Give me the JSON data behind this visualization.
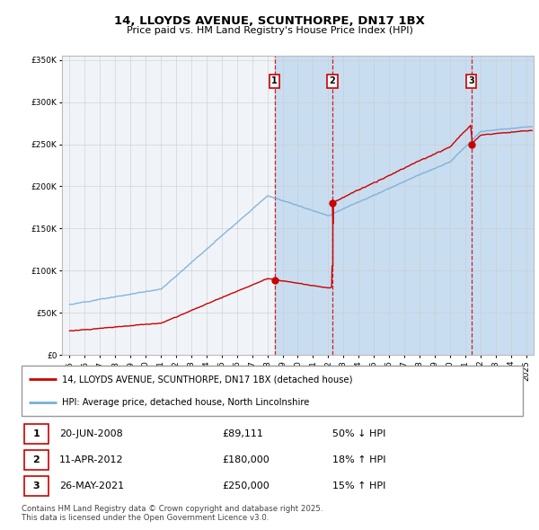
{
  "title": "14, LLOYDS AVENUE, SCUNTHORPE, DN17 1BX",
  "subtitle": "Price paid vs. HM Land Registry's House Price Index (HPI)",
  "legend_line1": "14, LLOYDS AVENUE, SCUNTHORPE, DN17 1BX (detached house)",
  "legend_line2": "HPI: Average price, detached house, North Lincolnshire",
  "footer": "Contains HM Land Registry data © Crown copyright and database right 2025.\nThis data is licensed under the Open Government Licence v3.0.",
  "sales": [
    {
      "num": 1,
      "date": "20-JUN-2008",
      "price": 89111,
      "year": 2008.47,
      "pct": "50%",
      "dir": "↓"
    },
    {
      "num": 2,
      "date": "11-APR-2012",
      "price": 180000,
      "year": 2012.28,
      "pct": "18%",
      "dir": "↑"
    },
    {
      "num": 3,
      "date": "26-MAY-2021",
      "price": 250000,
      "year": 2021.4,
      "pct": "15%",
      "dir": "↑"
    }
  ],
  "ylim": [
    0,
    350000
  ],
  "xlim_start": 1994.5,
  "xlim_end": 2025.5,
  "red_color": "#cc0000",
  "blue_color": "#7aaed6",
  "vline_color": "#cc0000",
  "shade_color": "#c8ddf0",
  "background_color": "#f0f4f8",
  "grid_color": "#cccccc"
}
